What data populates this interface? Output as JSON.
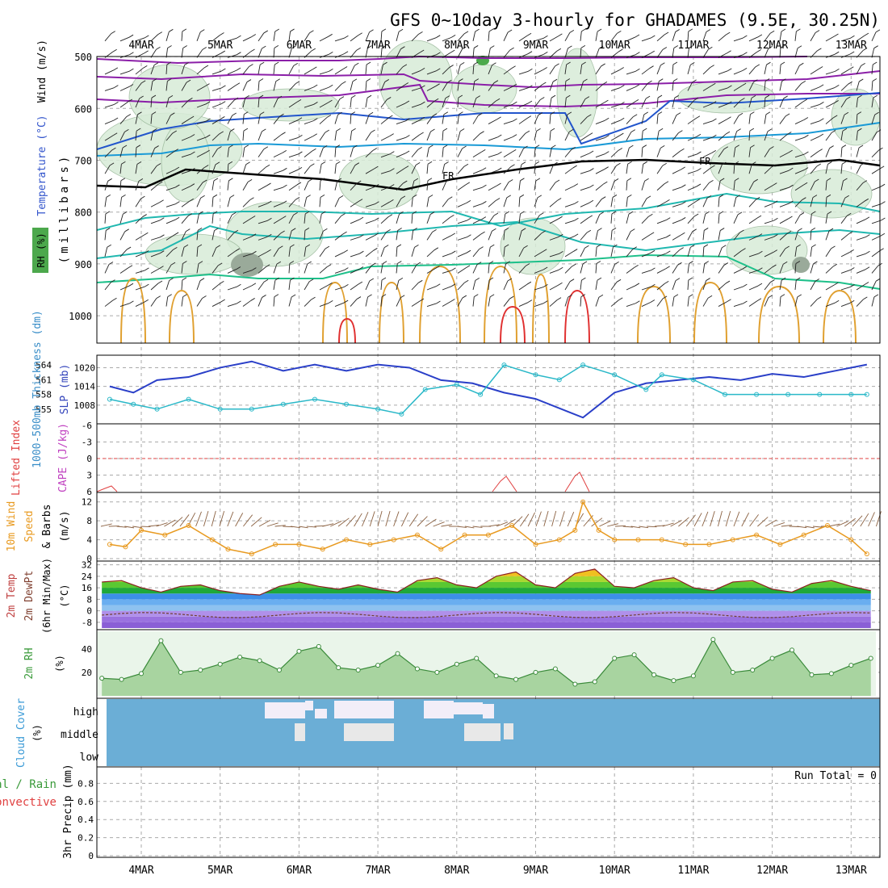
{
  "title": "GFS 0~10day 3-hourly for GHADAMES (9.5E, 30.25N)",
  "dates": [
    "4MAR",
    "5MAR",
    "6MAR",
    "7MAR",
    "8MAR",
    "9MAR",
    "10MAR",
    "11MAR",
    "12MAR",
    "13MAR"
  ],
  "panels": {
    "upper": {
      "ylabel_rh": "RH (%)",
      "ylabel_temp": "Temperature (°C)",
      "ylabel_wind": "Wind (m/s)",
      "ylabel_mb": "(millibars)",
      "yticks": [
        "500",
        "600",
        "700",
        "800",
        "900",
        "1000"
      ],
      "fr_label": "FR"
    },
    "slp": {
      "ylabel_thick": "1000-500mb Thickness (dm)",
      "ylabel_slp": "SLP (mb)",
      "thick_ticks": [
        "564",
        "561",
        "558",
        "555"
      ],
      "slp_ticks": [
        "1020",
        "1014",
        "1008"
      ]
    },
    "cape": {
      "ylabel_li": "Lifted Index",
      "ylabel_cape": "CAPE (J/kg)",
      "ticks": [
        "-6",
        "-3",
        "0",
        "3",
        "6"
      ]
    },
    "wind10": {
      "ylabel_a": "10m Wind",
      "ylabel_b": "Speed",
      "ylabel_c": "& Barbs",
      "ylabel_unit": "(m/s)",
      "ticks": [
        "12",
        "8",
        "4",
        "0"
      ]
    },
    "temp2m": {
      "ylabel_a": "2m Temp",
      "ylabel_b": "2m DewPt",
      "ylabel_c": "(6hr Min/Max)",
      "ylabel_unit": "(°C)",
      "ticks": [
        "32",
        "24",
        "16",
        "8",
        "0",
        "-8"
      ]
    },
    "rh2m": {
      "ylabel": "2m RH",
      "ylabel_unit": "(%)",
      "ticks": [
        "40",
        "20"
      ]
    },
    "cloud": {
      "ylabel": "Cloud Cover",
      "ylabel_unit": "(%)",
      "levels": [
        "high",
        "middle",
        "low"
      ]
    },
    "precip": {
      "ylabel_a": "Total / Rain",
      "ylabel_b": "Convective",
      "ylabel_c": "3hr Precip (mm)",
      "ticks": [
        "0.8",
        "0.6",
        "0.4",
        "0.2",
        "0"
      ],
      "run_total": "Run Total = 0"
    }
  },
  "colors": {
    "temp_purple": "#8b1fa8",
    "temp_blue": "#2255cc",
    "temp_lightblue": "#1a9ad6",
    "temp_teal": "#20b8b0",
    "temp_green": "#1ec08a",
    "temp_orange": "#e0a030",
    "temp_red": "#e03030",
    "slp_line": "#2a3fc8",
    "thick_line": "#2ab8c8",
    "wind_line": "#e89a20",
    "barb_color": "#8a6040",
    "rh_fill": "#5ab05a",
    "cloud_blue": "#6baed6",
    "grid": "#aaaaaa"
  },
  "chart_data": [
    {
      "type": "line",
      "name": "sea level pressure",
      "ylabel": "SLP (mb)",
      "ylim": [
        1002,
        1024
      ],
      "x_days": [
        3.6,
        3.9,
        4.2,
        4.6,
        5.0,
        5.4,
        5.8,
        6.2,
        6.6,
        7.0,
        7.4,
        7.8,
        8.2,
        8.6,
        9.0,
        9.4,
        9.6,
        10.0,
        10.4,
        10.8,
        11.2,
        11.6,
        12.0,
        12.4,
        12.8,
        13.2
      ],
      "values": [
        1014,
        1012,
        1016,
        1017,
        1020,
        1022,
        1019,
        1021,
        1019,
        1021,
        1020,
        1016,
        1015,
        1012,
        1010,
        1006,
        1004,
        1012,
        1015,
        1016,
        1017,
        1016,
        1018,
        1017,
        1019,
        1021
      ]
    },
    {
      "type": "line",
      "name": "1000-500mb thickness",
      "ylabel": "Thickness (dm)",
      "ylim": [
        553,
        566
      ],
      "x_days": [
        3.6,
        3.9,
        4.2,
        4.6,
        5.0,
        5.4,
        5.8,
        6.2,
        6.6,
        7.0,
        7.3,
        7.6,
        8.0,
        8.3,
        8.6,
        9.0,
        9.3,
        9.6,
        10.0,
        10.4,
        10.6,
        11.0,
        11.4,
        11.8,
        12.2,
        12.6,
        13.0,
        13.2
      ],
      "values": [
        557,
        556,
        555,
        557,
        555,
        555,
        556,
        557,
        556,
        555,
        554,
        559,
        560,
        558,
        564,
        562,
        561,
        564,
        562,
        559,
        562,
        561,
        558,
        558,
        558,
        558,
        558,
        558
      ]
    },
    {
      "type": "line",
      "name": "10m wind speed",
      "ylabel": "(m/s)",
      "ylim": [
        0,
        14
      ],
      "x_days": [
        3.6,
        3.8,
        4.0,
        4.3,
        4.6,
        4.9,
        5.1,
        5.4,
        5.7,
        6.0,
        6.3,
        6.6,
        6.9,
        7.2,
        7.5,
        7.8,
        8.1,
        8.4,
        8.7,
        9.0,
        9.3,
        9.5,
        9.6,
        9.8,
        10.0,
        10.3,
        10.6,
        10.9,
        11.2,
        11.5,
        11.8,
        12.1,
        12.4,
        12.7,
        13.0,
        13.2
      ],
      "values": [
        3,
        2.5,
        6,
        5,
        7,
        4,
        2,
        1,
        3,
        3,
        2,
        4,
        3,
        4,
        5,
        2,
        5,
        5,
        7,
        3,
        4,
        6,
        12,
        6,
        4,
        4,
        4,
        3,
        3,
        4,
        5,
        3,
        5,
        7,
        4,
        1
      ]
    },
    {
      "type": "area",
      "name": "2m temperature",
      "ylabel": "(°C)",
      "ylim": [
        -12,
        34
      ],
      "x_days": [
        3.5,
        3.75,
        4.0,
        4.25,
        4.5,
        4.75,
        5.0,
        5.25,
        5.5,
        5.75,
        6.0,
        6.25,
        6.5,
        6.75,
        7.0,
        7.25,
        7.5,
        7.75,
        8.0,
        8.25,
        8.5,
        8.75,
        9.0,
        9.25,
        9.5,
        9.75,
        10.0,
        10.25,
        10.5,
        10.75,
        11.0,
        11.25,
        11.5,
        11.75,
        12.0,
        12.25,
        12.5,
        12.75,
        13.0,
        13.25
      ],
      "values": [
        20,
        21,
        16,
        13,
        17,
        18,
        14,
        12,
        11,
        17,
        20,
        17,
        15,
        18,
        15,
        13,
        21,
        23,
        18,
        16,
        24,
        27,
        18,
        16,
        26,
        29,
        17,
        16,
        21,
        23,
        16,
        14,
        20,
        21,
        15,
        13,
        19,
        21,
        17,
        14
      ]
    },
    {
      "type": "area",
      "name": "2m relative humidity",
      "ylabel": "(%)",
      "ylim": [
        0,
        55
      ],
      "x_days": [
        3.5,
        3.75,
        4.0,
        4.25,
        4.5,
        4.75,
        5.0,
        5.25,
        5.5,
        5.75,
        6.0,
        6.25,
        6.5,
        6.75,
        7.0,
        7.25,
        7.5,
        7.75,
        8.0,
        8.25,
        8.5,
        8.75,
        9.0,
        9.25,
        9.5,
        9.75,
        10.0,
        10.25,
        10.5,
        10.75,
        11.0,
        11.25,
        11.5,
        11.75,
        12.0,
        12.25,
        12.5,
        12.75,
        13.0,
        13.25
      ],
      "values": [
        15,
        14,
        19,
        47,
        20,
        22,
        27,
        33,
        30,
        22,
        38,
        42,
        24,
        22,
        26,
        36,
        23,
        20,
        27,
        32,
        17,
        14,
        20,
        23,
        10,
        12,
        32,
        35,
        18,
        13,
        17,
        48,
        20,
        22,
        32,
        39,
        18,
        19,
        26,
        32
      ]
    },
    {
      "type": "bar",
      "name": "3hr precipitation",
      "ylabel": "3hr Precip (mm)",
      "ylim": [
        0,
        1
      ],
      "values": [
        0
      ]
    }
  ]
}
